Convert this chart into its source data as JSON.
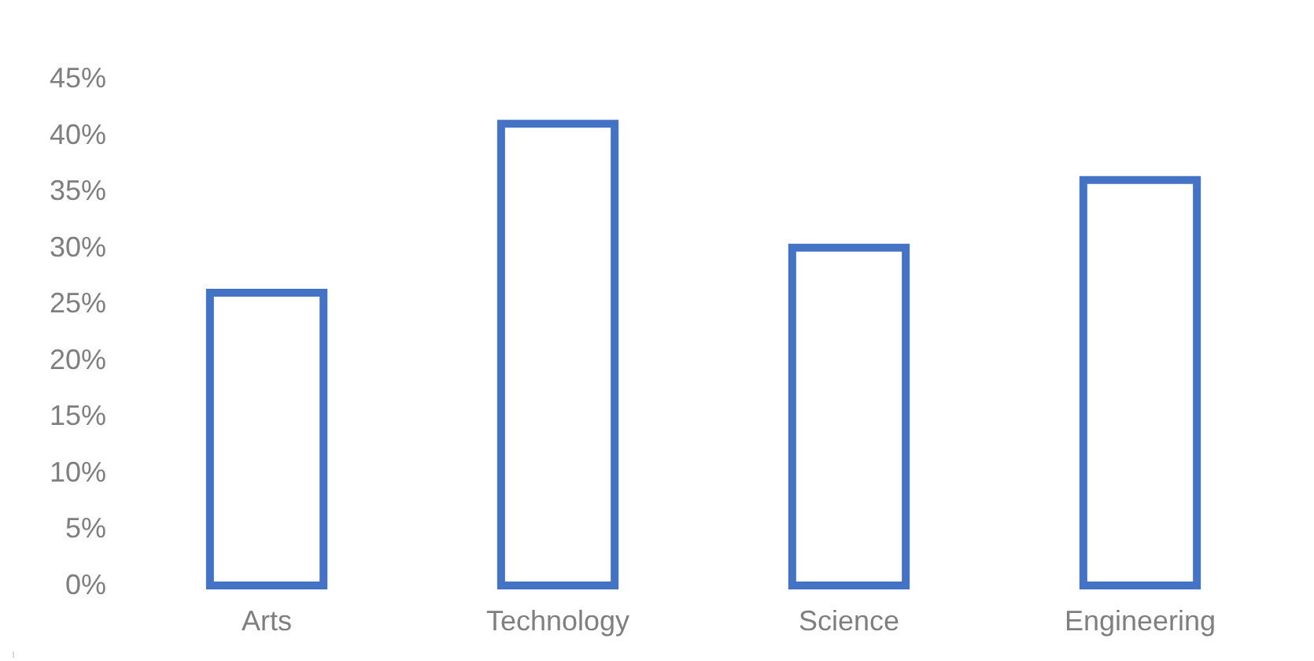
{
  "chart_data": {
    "type": "bar",
    "categories": [
      "Arts",
      "Technology",
      "Science",
      "Engineering"
    ],
    "values": [
      26,
      41,
      30,
      36
    ],
    "color": "#4472c4",
    "ylim": [
      0,
      45
    ],
    "yticks": [
      {
        "value": 0,
        "label": "0%"
      },
      {
        "value": 5,
        "label": "5%"
      },
      {
        "value": 10,
        "label": "10%"
      },
      {
        "value": 15,
        "label": "15%"
      },
      {
        "value": 20,
        "label": "20%"
      },
      {
        "value": 25,
        "label": "25%"
      },
      {
        "value": 30,
        "label": "30%"
      },
      {
        "value": 35,
        "label": "35%"
      },
      {
        "value": 40,
        "label": "40%"
      },
      {
        "value": 45,
        "label": "45%"
      }
    ],
    "grid": false
  }
}
